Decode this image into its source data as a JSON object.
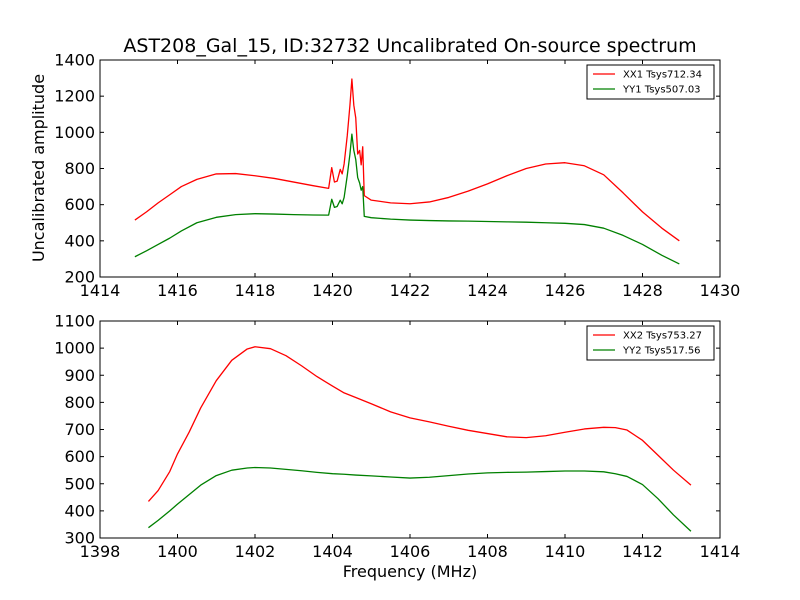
{
  "figure": {
    "title": "AST208_Gal_15, ID:32732 Uncalibrated On-source spectrum",
    "ylabel": "Uncalibrated amplitude",
    "xlabel": "Frequency (MHz)"
  },
  "chart_data": [
    {
      "type": "line",
      "title": "AST208_Gal_15, ID:32732 Uncalibrated On-source spectrum",
      "xlabel": "",
      "ylabel": "Uncalibrated amplitude",
      "xlim": [
        1414,
        1430
      ],
      "ylim": [
        200,
        1400
      ],
      "xticks": [
        1414,
        1416,
        1418,
        1420,
        1422,
        1424,
        1426,
        1428,
        1430
      ],
      "yticks": [
        200,
        400,
        600,
        800,
        1000,
        1200,
        1400
      ],
      "grid": false,
      "legend_position": "top-right",
      "series": [
        {
          "name": "XX1 Tsys712.34",
          "color": "#ff0000",
          "x": [
            1414.9,
            1415.2,
            1415.5,
            1415.8,
            1416.1,
            1416.5,
            1417.0,
            1417.5,
            1418.0,
            1418.5,
            1419.0,
            1419.5,
            1419.9,
            1419.98,
            1420.05,
            1420.12,
            1420.2,
            1420.25,
            1420.3,
            1420.38,
            1420.45,
            1420.5,
            1420.55,
            1420.6,
            1420.65,
            1420.7,
            1420.74,
            1420.78,
            1420.82,
            1421.0,
            1421.5,
            1422.0,
            1422.5,
            1423.0,
            1423.5,
            1424.0,
            1424.5,
            1425.0,
            1425.5,
            1426.0,
            1426.5,
            1427.0,
            1427.5,
            1428.0,
            1428.5,
            1428.95
          ],
          "y": [
            515,
            560,
            610,
            655,
            700,
            740,
            770,
            772,
            760,
            745,
            725,
            705,
            690,
            805,
            725,
            730,
            795,
            770,
            825,
            980,
            1150,
            1295,
            1150,
            1080,
            880,
            900,
            820,
            920,
            650,
            625,
            610,
            605,
            615,
            640,
            675,
            715,
            760,
            800,
            825,
            832,
            815,
            765,
            665,
            560,
            470,
            400
          ]
        },
        {
          "name": "YY1 Tsys507.03",
          "color": "#008000",
          "x": [
            1414.9,
            1415.2,
            1415.5,
            1415.8,
            1416.1,
            1416.5,
            1417.0,
            1417.5,
            1418.0,
            1418.5,
            1419.0,
            1419.5,
            1419.9,
            1419.98,
            1420.05,
            1420.12,
            1420.2,
            1420.25,
            1420.3,
            1420.38,
            1420.45,
            1420.5,
            1420.55,
            1420.6,
            1420.65,
            1420.7,
            1420.74,
            1420.78,
            1420.82,
            1421.0,
            1421.5,
            1422.0,
            1422.5,
            1423.0,
            1423.5,
            1424.0,
            1424.5,
            1425.0,
            1425.5,
            1426.0,
            1426.5,
            1427.0,
            1427.5,
            1428.0,
            1428.5,
            1428.95
          ],
          "y": [
            312,
            345,
            380,
            415,
            455,
            500,
            530,
            545,
            550,
            548,
            545,
            543,
            542,
            630,
            585,
            590,
            625,
            605,
            640,
            760,
            880,
            990,
            900,
            850,
            750,
            720,
            680,
            700,
            535,
            528,
            520,
            515,
            512,
            510,
            509,
            507,
            505,
            503,
            500,
            497,
            490,
            470,
            430,
            380,
            320,
            272
          ]
        }
      ]
    },
    {
      "type": "line",
      "title": "",
      "xlabel": "Frequency (MHz)",
      "ylabel": "",
      "xlim": [
        1398,
        1414
      ],
      "ylim": [
        300,
        1100
      ],
      "xticks": [
        1398,
        1400,
        1402,
        1404,
        1406,
        1408,
        1410,
        1412,
        1414
      ],
      "yticks": [
        300,
        400,
        500,
        600,
        700,
        800,
        900,
        1000,
        1100
      ],
      "grid": false,
      "legend_position": "top-right",
      "series": [
        {
          "name": "XX2 Tsys753.27",
          "color": "#ff0000",
          "x": [
            1399.25,
            1399.5,
            1399.8,
            1400.0,
            1400.3,
            1400.6,
            1401.0,
            1401.4,
            1401.8,
            1402.0,
            1402.4,
            1402.8,
            1403.2,
            1403.6,
            1404.0,
            1404.3,
            1404.6,
            1405.0,
            1405.5,
            1406.0,
            1406.5,
            1407.0,
            1407.5,
            1408.0,
            1408.5,
            1409.0,
            1409.5,
            1410.0,
            1410.5,
            1411.0,
            1411.3,
            1411.6,
            1412.0,
            1412.4,
            1412.8,
            1413.25
          ],
          "y": [
            435,
            475,
            545,
            610,
            690,
            780,
            880,
            955,
            997,
            1005,
            998,
            972,
            935,
            895,
            860,
            835,
            818,
            795,
            765,
            743,
            728,
            712,
            697,
            685,
            673,
            670,
            677,
            690,
            702,
            708,
            707,
            698,
            660,
            605,
            550,
            495
          ]
        },
        {
          "name": "YY2 Tsys517.56",
          "color": "#008000",
          "x": [
            1399.25,
            1399.5,
            1399.8,
            1400.0,
            1400.3,
            1400.6,
            1401.0,
            1401.4,
            1401.8,
            1402.0,
            1402.4,
            1402.8,
            1403.2,
            1403.6,
            1404.0,
            1404.3,
            1404.6,
            1405.0,
            1405.5,
            1406.0,
            1406.5,
            1407.0,
            1407.5,
            1408.0,
            1408.5,
            1409.0,
            1409.5,
            1410.0,
            1410.5,
            1411.0,
            1411.3,
            1411.6,
            1412.0,
            1412.4,
            1412.8,
            1413.25
          ],
          "y": [
            338,
            365,
            400,
            425,
            460,
            495,
            530,
            550,
            558,
            560,
            558,
            553,
            548,
            542,
            537,
            535,
            532,
            529,
            525,
            521,
            524,
            530,
            536,
            540,
            542,
            543,
            545,
            547,
            547,
            544,
            537,
            527,
            497,
            445,
            385,
            325
          ]
        }
      ]
    }
  ]
}
